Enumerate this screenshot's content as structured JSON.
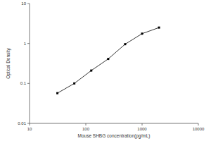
{
  "chart_data": {
    "type": "line",
    "x_label": "Mouse SHBG concentration(pg/mL)",
    "y_label": "Optical Density",
    "x": [
      31.25,
      62.5,
      125,
      250,
      500,
      1000,
      2000
    ],
    "values": [
      0.057,
      0.1,
      0.21,
      0.41,
      0.96,
      1.76,
      2.5
    ],
    "color": "#000000",
    "marker": "square",
    "log": true,
    "grid": false,
    "xlim": [
      10,
      10000
    ],
    "xticks": [
      10,
      100,
      1000,
      10000
    ],
    "ylim": [
      0.01,
      10
    ],
    "yticks": [
      0.01,
      0.1,
      1,
      10
    ]
  }
}
